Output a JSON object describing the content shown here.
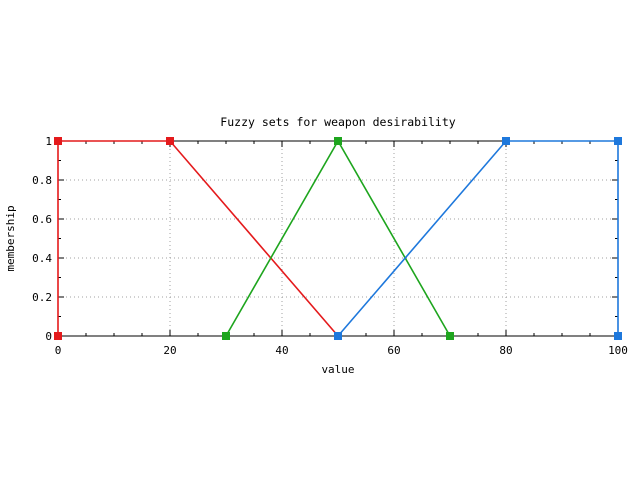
{
  "chart_data": {
    "type": "line",
    "title": "Fuzzy sets for weapon desirability",
    "xlabel": "value",
    "ylabel": "membership",
    "xlim": [
      0,
      100
    ],
    "ylim": [
      0,
      1
    ],
    "xticks": [
      0,
      20,
      40,
      60,
      80,
      100
    ],
    "yticks": [
      0,
      0.2,
      0.4,
      0.6,
      0.8,
      1
    ],
    "ytick_labels": [
      "0",
      "0.2",
      "0.4",
      "0.6",
      "0.8",
      "1"
    ],
    "grid": true,
    "legend": "none",
    "series": [
      {
        "color": "#e41a1c",
        "marker": "square",
        "points": [
          [
            0,
            0
          ],
          [
            0,
            1
          ],
          [
            20,
            1
          ],
          [
            50,
            0
          ]
        ]
      },
      {
        "color": "#1ea51e",
        "marker": "square",
        "points": [
          [
            30,
            0
          ],
          [
            50,
            1
          ],
          [
            70,
            0
          ]
        ]
      },
      {
        "color": "#1e78dc",
        "marker": "square",
        "points": [
          [
            50,
            0
          ],
          [
            80,
            1
          ],
          [
            100,
            1
          ],
          [
            100,
            0
          ]
        ]
      }
    ]
  }
}
